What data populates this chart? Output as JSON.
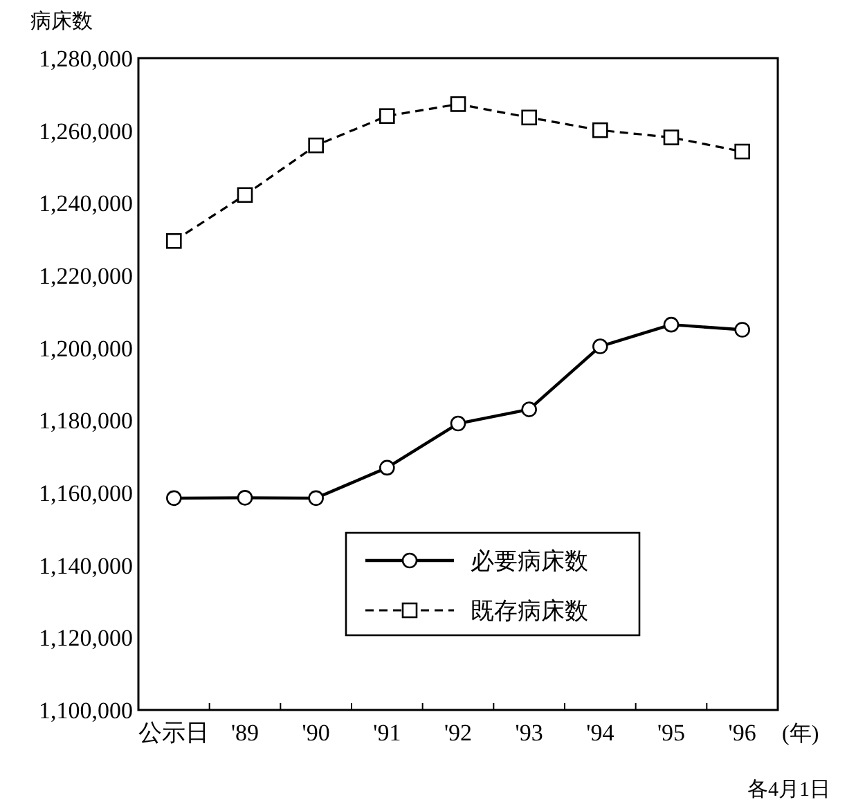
{
  "chart_data": {
    "type": "line",
    "ylabel": "病床数",
    "xlabel": "(年)",
    "categories": [
      "公示日",
      "'89",
      "'90",
      "'91",
      "'92",
      "'93",
      "'94",
      "'95",
      "'96"
    ],
    "ylim": [
      1100000,
      1280000
    ],
    "yticks": [
      {
        "value": 1100000,
        "label": "1,100,000"
      },
      {
        "value": 1120000,
        "label": "1,120,000"
      },
      {
        "value": 1140000,
        "label": "1,140,000"
      },
      {
        "value": 1160000,
        "label": "1,160,000"
      },
      {
        "value": 1180000,
        "label": "1,180,000"
      },
      {
        "value": 1200000,
        "label": "1,200,000"
      },
      {
        "value": 1220000,
        "label": "1,220,000"
      },
      {
        "value": 1240000,
        "label": "1,240,000"
      },
      {
        "value": 1260000,
        "label": "1,260,000"
      },
      {
        "value": 1280000,
        "label": "1,280,000"
      }
    ],
    "series": [
      {
        "name": "必要病床数",
        "color": "#000000",
        "marker": "circle",
        "line_style": "solid",
        "values": [
          1158500,
          1158600,
          1158500,
          1166900,
          1179100,
          1183000,
          1200400,
          1206400,
          1205000
        ]
      },
      {
        "name": "既存病床数",
        "color": "#000000",
        "marker": "square",
        "line_style": "dashed",
        "values": [
          1229500,
          1242200,
          1255900,
          1264000,
          1267300,
          1263600,
          1260100,
          1258100,
          1254200
        ]
      }
    ],
    "legend": "bottom",
    "grid": false,
    "annotations": [
      "各4月1日"
    ]
  }
}
